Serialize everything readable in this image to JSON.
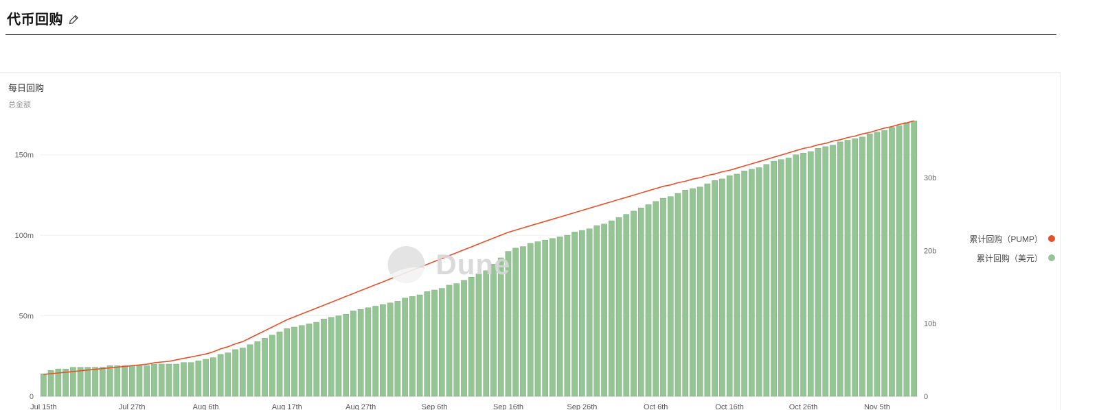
{
  "page": {
    "title": "代币回购"
  },
  "card": {
    "title": "每日回购",
    "subtitle": "总金额"
  },
  "watermark": {
    "text": "Dune"
  },
  "legend": {
    "items": [
      {
        "label": "累计回购（PUMP）",
        "color": "#e8502a"
      },
      {
        "label": "累计回购（美元）",
        "color": "#95c495"
      }
    ]
  },
  "chart_data": {
    "type": "bar+line",
    "title": "每日回购",
    "subtitle": "总金额",
    "grid": "horizontal",
    "legend_position": "right",
    "x_unit": "day",
    "x_start": "Jul 15th",
    "x_end": "Nov 10th",
    "x_days_total": 119,
    "x_tick_labels": [
      "Jul 15th",
      "Jul 27th",
      "Aug 6th",
      "Aug 17th",
      "Aug 27th",
      "Sep 6th",
      "Sep 16th",
      "Sep 26th",
      "Oct 6th",
      "Oct 16th",
      "Oct 26th",
      "Nov 5th"
    ],
    "x_tick_day_index": [
      0,
      12,
      22,
      33,
      43,
      53,
      63,
      73,
      83,
      93,
      103,
      113
    ],
    "left_axis": {
      "series": "累计回购（美元）",
      "unit": "million USD",
      "tick_labels": [
        "0",
        "50m",
        "100m",
        "150m"
      ],
      "tick_values": [
        0,
        50,
        100,
        150
      ],
      "range": [
        0,
        172
      ]
    },
    "right_axis": {
      "series": "累计回购（PUMP）",
      "unit": "billion PUMP",
      "tick_labels": [
        "0",
        "10b",
        "20b",
        "30b"
      ],
      "tick_values": [
        0,
        10,
        20,
        30
      ],
      "range": [
        0,
        38
      ]
    },
    "series": [
      {
        "name": "累计回购（美元）",
        "type": "bar",
        "axis": "left",
        "color": "#95c495",
        "border": "#7aaf7a",
        "values": [
          14,
          16,
          17,
          17,
          18,
          18,
          18,
          18,
          18,
          19,
          19,
          19,
          19,
          19,
          19,
          20,
          20,
          20,
          20,
          21,
          21,
          22,
          23,
          24,
          26,
          27,
          29,
          30,
          32,
          34,
          36,
          38,
          40,
          42,
          43,
          44,
          45,
          46,
          48,
          49,
          50,
          51,
          53,
          54,
          55,
          56,
          57,
          58,
          59,
          61,
          62,
          63,
          65,
          66,
          67,
          69,
          70,
          72,
          74,
          76,
          78,
          82,
          86,
          90,
          92,
          93,
          95,
          96,
          97,
          98,
          99,
          100,
          102,
          103,
          104,
          106,
          107,
          109,
          111,
          113,
          115,
          117,
          119,
          121,
          123,
          124,
          126,
          128,
          129,
          130,
          132,
          134,
          135,
          137,
          138,
          140,
          141,
          142,
          144,
          146,
          147,
          148,
          150,
          151,
          152,
          154,
          155,
          156,
          158,
          159,
          160,
          161,
          163,
          164,
          165,
          167,
          168,
          170,
          171
        ]
      },
      {
        "name": "累计回购（PUMP）",
        "type": "line",
        "axis": "right",
        "color": "#e8502a",
        "values": [
          3.0,
          3.1,
          3.2,
          3.3,
          3.4,
          3.5,
          3.6,
          3.7,
          3.8,
          3.9,
          4.0,
          4.1,
          4.2,
          4.3,
          4.4,
          4.6,
          4.7,
          4.8,
          5.0,
          5.2,
          5.4,
          5.6,
          5.8,
          6.1,
          6.5,
          6.8,
          7.2,
          7.5,
          8.0,
          8.5,
          9.0,
          9.5,
          10.0,
          10.5,
          10.9,
          11.3,
          11.7,
          12.1,
          12.5,
          12.9,
          13.3,
          13.7,
          14.1,
          14.5,
          14.9,
          15.3,
          15.7,
          16.1,
          16.5,
          16.9,
          17.3,
          17.7,
          18.1,
          18.5,
          18.9,
          19.3,
          19.7,
          20.1,
          20.5,
          20.9,
          21.3,
          21.7,
          22.1,
          22.5,
          22.8,
          23.1,
          23.4,
          23.7,
          24.0,
          24.3,
          24.6,
          24.9,
          25.2,
          25.5,
          25.8,
          26.1,
          26.4,
          26.7,
          27.0,
          27.3,
          27.6,
          27.9,
          28.2,
          28.5,
          28.8,
          29.0,
          29.3,
          29.5,
          29.8,
          30.0,
          30.3,
          30.5,
          30.8,
          31.0,
          31.3,
          31.6,
          31.9,
          32.2,
          32.5,
          32.8,
          33.1,
          33.4,
          33.7,
          34.0,
          34.2,
          34.5,
          34.7,
          35.0,
          35.2,
          35.5,
          35.7,
          36.0,
          36.2,
          36.5,
          36.8,
          37.0,
          37.3,
          37.5,
          37.8
        ]
      }
    ]
  }
}
